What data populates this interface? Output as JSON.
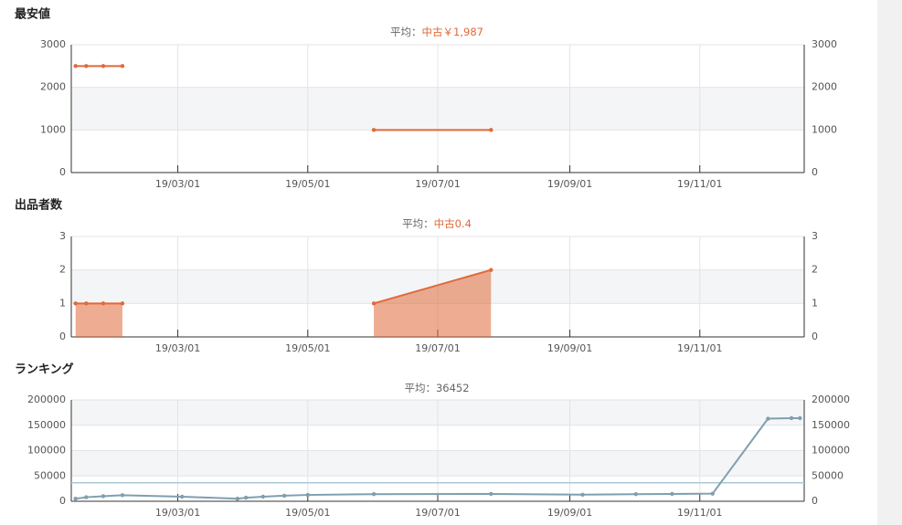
{
  "chart_data": [
    {
      "type": "line",
      "title": "最安値",
      "subtitle": "平均：",
      "subtitle_value": "中古￥1,987",
      "xlim": [
        "19/01/10",
        "19/12/20"
      ],
      "xticks": [
        "19/03/01",
        "19/05/01",
        "19/07/01",
        "19/09/01",
        "19/11/01"
      ],
      "ylim": [
        0,
        3000
      ],
      "yticks": [
        0,
        1000,
        2000,
        3000
      ],
      "series": [
        {
          "color": "#e0693a",
          "x": [
            "19/01/12",
            "19/01/17",
            "19/01/25",
            "19/02/03"
          ],
          "values": [
            2500,
            2500,
            2500,
            2500
          ]
        },
        {
          "color": "#e0693a",
          "x": [
            "19/06/01",
            "19/07/26"
          ],
          "values": [
            1000,
            1000
          ]
        }
      ]
    },
    {
      "type": "area",
      "title": "出品者数",
      "subtitle": "平均：",
      "subtitle_value": "中古0.4",
      "xlim": [
        "19/01/10",
        "19/12/20"
      ],
      "xticks": [
        "19/03/01",
        "19/05/01",
        "19/07/01",
        "19/09/01",
        "19/11/01"
      ],
      "ylim": [
        0,
        3
      ],
      "yticks": [
        0,
        1,
        2,
        3
      ],
      "series": [
        {
          "color": "#e0693a",
          "x": [
            "19/01/12",
            "19/01/17",
            "19/01/25",
            "19/02/03"
          ],
          "values": [
            1,
            1,
            1,
            1
          ]
        },
        {
          "color": "#e0693a",
          "x": [
            "19/06/01",
            "19/07/26"
          ],
          "values": [
            1,
            2
          ]
        }
      ]
    },
    {
      "type": "line",
      "title": "ランキング",
      "subtitle": "平均：36452",
      "average": 36452,
      "average_color": "#a9c8d8",
      "xlim": [
        "19/01/10",
        "19/12/20"
      ],
      "xticks": [
        "19/03/01",
        "19/05/01",
        "19/07/01",
        "19/09/01",
        "19/11/01"
      ],
      "ylim": [
        0,
        200000
      ],
      "yticks": [
        0,
        50000,
        100000,
        150000,
        200000
      ],
      "series": [
        {
          "color": "#7f9faf",
          "x": [
            "19/01/12",
            "19/01/17",
            "19/01/25",
            "19/02/03",
            "19/03/03",
            "19/03/29",
            "19/04/02",
            "19/04/10",
            "19/04/20",
            "19/05/01",
            "19/06/01",
            "19/07/26",
            "19/09/07",
            "19/10/02",
            "19/10/19",
            "19/11/07",
            "19/12/03",
            "19/12/14",
            "19/12/18"
          ],
          "values": [
            5000,
            8000,
            10000,
            12000,
            9000,
            5000,
            7000,
            9000,
            11000,
            12500,
            14000,
            14500,
            13000,
            14000,
            14500,
            15000,
            163000,
            164000,
            164000
          ]
        }
      ]
    }
  ]
}
